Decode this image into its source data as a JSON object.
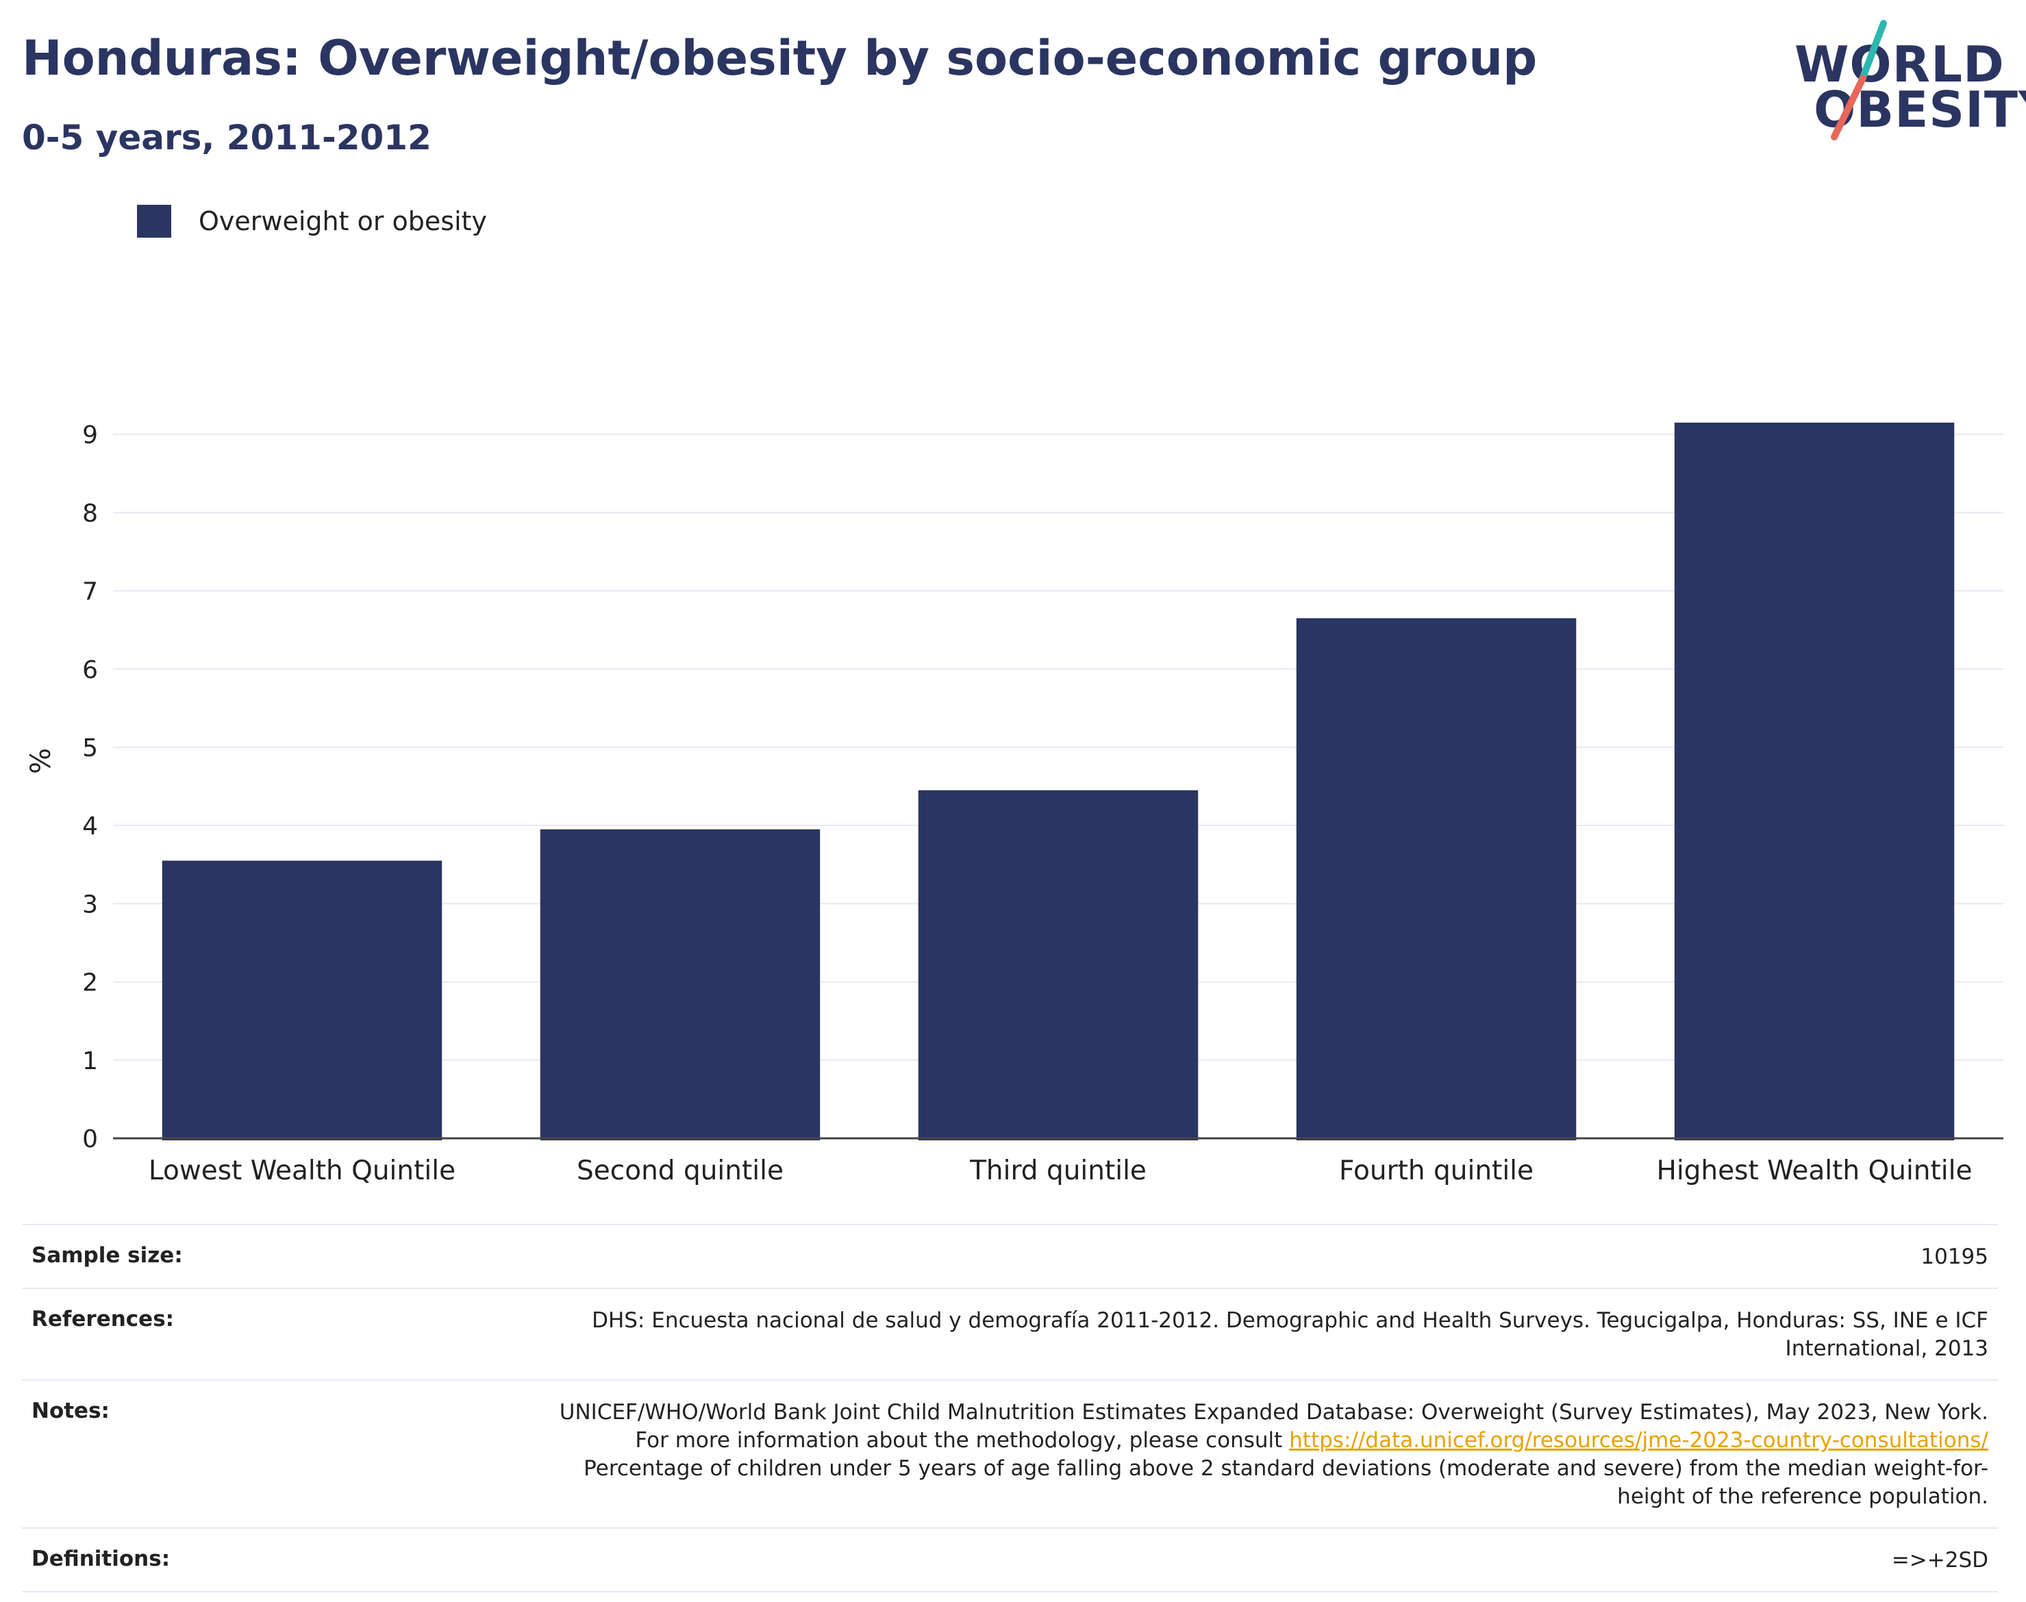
{
  "header": {
    "title": "Honduras: Overweight/obesity by socio-economic group",
    "subtitle": "0-5 years, 2011-2012"
  },
  "logo": {
    "line1": "WORLD",
    "line2": "OBESITY",
    "colors": {
      "navy": "#2b3561",
      "teal": "#2bb8b0",
      "coral": "#e8665a"
    }
  },
  "legend": {
    "label": "Overweight or obesity",
    "color": "#2b3561"
  },
  "chart_data": {
    "type": "bar",
    "categories": [
      "Lowest Wealth Quintile",
      "Second quintile",
      "Third quintile",
      "Fourth quintile",
      "Highest Wealth Quintile"
    ],
    "series": [
      {
        "name": "Overweight or obesity",
        "values": [
          3.55,
          3.95,
          4.45,
          6.65,
          9.15
        ],
        "color": "#2b3561"
      }
    ],
    "ylabel": "%",
    "xlabel": "",
    "ylim": [
      0,
      10
    ],
    "yticks": [
      0,
      1,
      2,
      3,
      4,
      5,
      6,
      7,
      8,
      9
    ],
    "grid": true,
    "legend_position": "top-left"
  },
  "meta": {
    "sample_size": {
      "label": "Sample size:",
      "value": "10195"
    },
    "references": {
      "label": "References:",
      "value": "DHS: Encuesta nacional de salud y demografía 2011-2012. Demographic and Health Surveys. Tegucigalpa, Honduras: SS, INE e ICF International, 2013"
    },
    "notes": {
      "label": "Notes:",
      "text1": "UNICEF/WHO/World Bank Joint Child Malnutrition Estimates Expanded Database: Overweight (Survey Estimates), May 2023, New York. For more information about the methodology, please consult ",
      "link": "https://data.unicef.org/resources/jme-2023-country-consultations/",
      "text2": " Percentage of children under 5 years of age falling above 2 standard deviations (moderate and severe) from the median weight-for-height of the reference population."
    },
    "definitions": {
      "label": "Definitions:",
      "value": "=>+2SD"
    }
  }
}
